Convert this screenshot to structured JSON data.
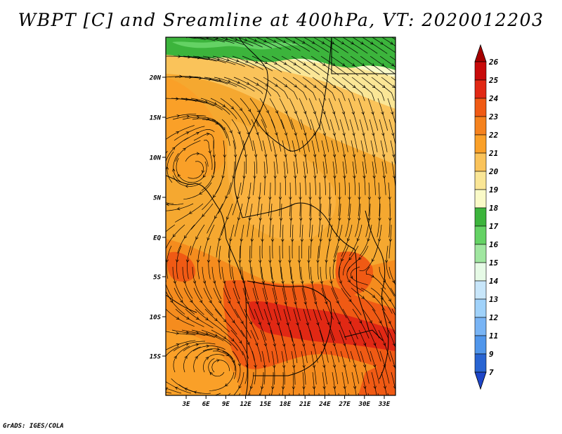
{
  "title": "WBPT [C] and Sreamline at 400hPa, VT: 2020012203",
  "credit": "GrADS: IGES/COLA",
  "map": {
    "lat_labels": [
      "20N",
      "15N",
      "10N",
      "5N",
      "EQ",
      "5S",
      "10S",
      "15S"
    ],
    "lon_labels": [
      "3E",
      "6E",
      "9E",
      "12E",
      "15E",
      "18E",
      "21E",
      "24E",
      "27E",
      "30E",
      "33E"
    ]
  },
  "colorbar": {
    "levels": [
      "26",
      "25",
      "24",
      "23",
      "22",
      "21",
      "20",
      "19",
      "18",
      "17",
      "16",
      "15",
      "14",
      "13",
      "12",
      "11",
      "9",
      "7"
    ],
    "colors": [
      "#a50000",
      "#c80a0a",
      "#e12814",
      "#f05a14",
      "#f5821e",
      "#faa028",
      "#fac35a",
      "#fae696",
      "#fafac8",
      "#3cb43c",
      "#64d264",
      "#a0e6a0",
      "#e6fae6",
      "#c8e6fa",
      "#a0d2fa",
      "#78b4f5",
      "#5096eb",
      "#2864d2",
      "#1e46c8"
    ],
    "end_triangles": [
      "top",
      "bottom"
    ]
  }
}
